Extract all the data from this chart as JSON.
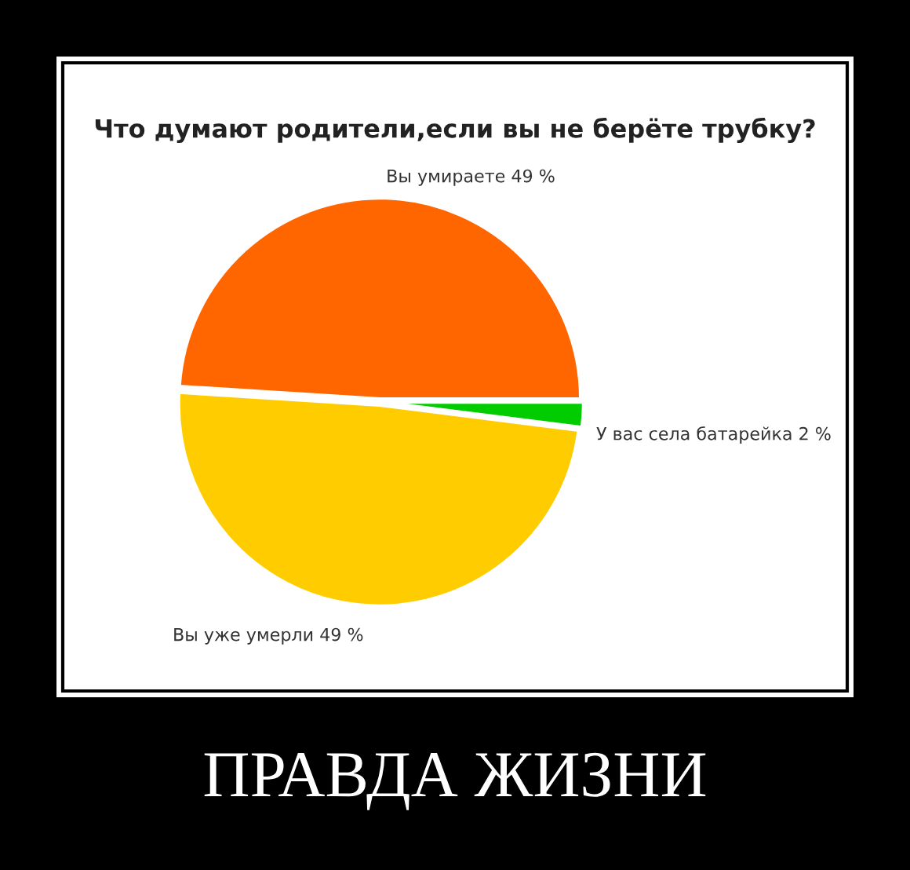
{
  "chart_data": {
    "type": "pie",
    "title": "Что думают родители,если вы не берёте трубку?",
    "subtitle": "ПРАВДА ЖИЗНИ",
    "categories": [
      "Вы умираете",
      "Вы уже умерли",
      "У вас села батарейка"
    ],
    "values": [
      49,
      49,
      2
    ],
    "value_labels": [
      "49 %",
      "49 %",
      "2 %"
    ],
    "colors": [
      "#ff6600",
      "#ffcc00",
      "#00cc00"
    ],
    "legend": false
  }
}
